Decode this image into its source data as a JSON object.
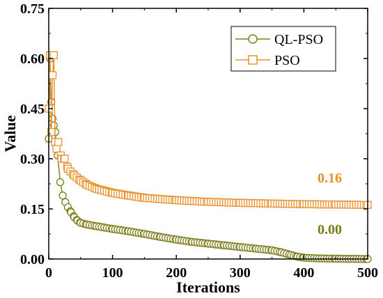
{
  "chart_data": {
    "type": "line",
    "xlabel": "Iterations",
    "ylabel": "Value",
    "xlim": [
      0,
      500
    ],
    "ylim": [
      0,
      0.75
    ],
    "x_ticks": [
      "0",
      "100",
      "200",
      "300",
      "400",
      "500"
    ],
    "y_ticks": [
      "0.00",
      "0.15",
      "0.30",
      "0.45",
      "0.60",
      "0.75"
    ],
    "grid": false,
    "legend_position": "top-right",
    "series": [
      {
        "name": "QL-PSO",
        "color": "#7b7b1a",
        "marker": "circle",
        "points": [
          [
            0,
            0.36
          ],
          [
            2,
            0.6
          ],
          [
            4,
            0.47
          ],
          [
            6,
            0.42
          ],
          [
            8,
            0.4
          ],
          [
            10,
            0.38
          ],
          [
            12,
            0.34
          ],
          [
            14,
            0.31
          ],
          [
            18,
            0.23
          ],
          [
            22,
            0.19
          ],
          [
            26,
            0.17
          ],
          [
            30,
            0.155
          ],
          [
            35,
            0.14
          ],
          [
            40,
            0.125
          ],
          [
            45,
            0.115
          ],
          [
            50,
            0.108
          ],
          [
            60,
            0.103
          ],
          [
            75,
            0.098
          ],
          [
            100,
            0.09
          ],
          [
            125,
            0.083
          ],
          [
            150,
            0.075
          ],
          [
            175,
            0.066
          ],
          [
            200,
            0.058
          ],
          [
            225,
            0.051
          ],
          [
            250,
            0.046
          ],
          [
            275,
            0.041
          ],
          [
            300,
            0.036
          ],
          [
            325,
            0.031
          ],
          [
            350,
            0.026
          ],
          [
            365,
            0.02
          ],
          [
            380,
            0.012
          ],
          [
            390,
            0.007
          ],
          [
            400,
            0.004
          ],
          [
            420,
            0.002
          ],
          [
            450,
            0.001
          ],
          [
            500,
            0.0
          ]
        ]
      },
      {
        "name": "PSO",
        "color": "#e8912b",
        "marker": "square",
        "points": [
          [
            0,
            0.45
          ],
          [
            2,
            0.61
          ],
          [
            4,
            0.38
          ],
          [
            6,
            0.55
          ],
          [
            8,
            0.61
          ],
          [
            10,
            0.35
          ],
          [
            12,
            0.33
          ],
          [
            15,
            0.35
          ],
          [
            20,
            0.3
          ],
          [
            25,
            0.3
          ],
          [
            30,
            0.27
          ],
          [
            40,
            0.25
          ],
          [
            50,
            0.235
          ],
          [
            60,
            0.222
          ],
          [
            75,
            0.21
          ],
          [
            100,
            0.198
          ],
          [
            125,
            0.19
          ],
          [
            150,
            0.183
          ],
          [
            200,
            0.176
          ],
          [
            250,
            0.171
          ],
          [
            300,
            0.168
          ],
          [
            350,
            0.166
          ],
          [
            400,
            0.164
          ],
          [
            450,
            0.163
          ],
          [
            500,
            0.162
          ]
        ]
      }
    ],
    "annotations": [
      {
        "text": "0.16",
        "series": "PSO",
        "color": "#e8912b"
      },
      {
        "text": "0.00",
        "series": "QL-PSO",
        "color": "#7b7b1a"
      }
    ]
  }
}
